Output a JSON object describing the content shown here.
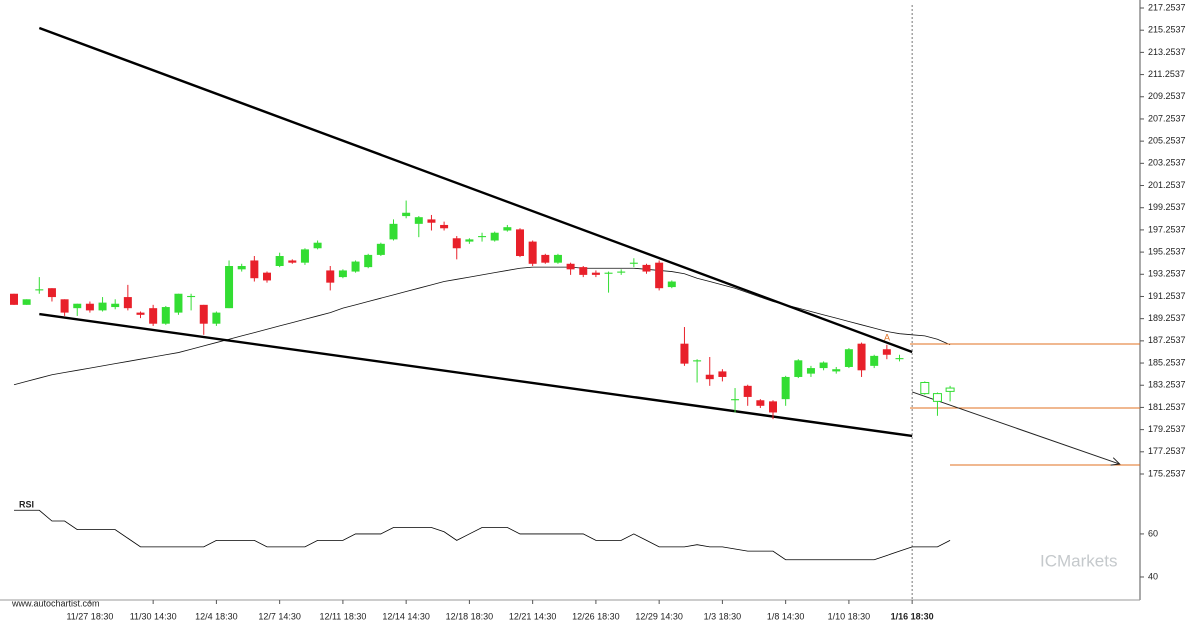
{
  "chart_data": {
    "type": "candlestick",
    "watermark": "www.autochartist.com",
    "brand": "ICMarkets",
    "up_color": "#33dd33",
    "down_color": "#e8202a",
    "level_color": "#e07020",
    "ylim": [
      175.2537,
      217.2537
    ],
    "yticks": [
      175.2537,
      177.2537,
      179.2537,
      181.2537,
      183.2537,
      185.2537,
      187.2537,
      189.2537,
      191.2537,
      193.2537,
      195.2537,
      197.2537,
      199.2537,
      201.2537,
      203.2537,
      205.2537,
      207.2537,
      209.2537,
      211.2537,
      213.2537,
      215.2537,
      217.2537
    ],
    "xticks": [
      {
        "value": 6,
        "label": "11/27 18:30"
      },
      {
        "value": 11,
        "label": "11/30 14:30"
      },
      {
        "value": 16,
        "label": "12/4 18:30"
      },
      {
        "value": 21,
        "label": "12/7 14:30"
      },
      {
        "value": 26,
        "label": "12/11 18:30"
      },
      {
        "value": 31,
        "label": "12/14 14:30"
      },
      {
        "value": 36,
        "label": "12/18 18:30"
      },
      {
        "value": 41,
        "label": "12/21 14:30"
      },
      {
        "value": 46,
        "label": "12/26 18:30"
      },
      {
        "value": 51,
        "label": "12/29 14:30"
      },
      {
        "value": 56,
        "label": "1/3 18:30"
      },
      {
        "value": 61,
        "label": "1/8 14:30"
      },
      {
        "value": 66,
        "label": "1/10 18:30"
      },
      {
        "value": 71,
        "label": "1/16 18:30"
      }
    ],
    "candles": [
      {
        "open": 191.5,
        "high": 191.5,
        "low": 190.5,
        "close": 190.5
      },
      {
        "open": 190.5,
        "high": 191.0,
        "low": 190.5,
        "close": 191.0
      },
      {
        "open": 191.8,
        "high": 193.0,
        "low": 191.5,
        "close": 191.9
      },
      {
        "open": 192.0,
        "high": 192.0,
        "low": 190.8,
        "close": 191.2
      },
      {
        "open": 191.0,
        "high": 191.0,
        "low": 189.5,
        "close": 189.8
      },
      {
        "open": 190.2,
        "high": 190.6,
        "low": 189.5,
        "close": 190.6
      },
      {
        "open": 190.6,
        "high": 190.8,
        "low": 189.8,
        "close": 190.0
      },
      {
        "open": 190.0,
        "high": 191.2,
        "low": 189.9,
        "close": 190.7
      },
      {
        "open": 190.3,
        "high": 191.0,
        "low": 190.1,
        "close": 190.6
      },
      {
        "open": 191.2,
        "high": 192.3,
        "low": 190.0,
        "close": 190.2
      },
      {
        "open": 189.8,
        "high": 189.9,
        "low": 189.3,
        "close": 189.6
      },
      {
        "open": 190.2,
        "high": 190.5,
        "low": 188.6,
        "close": 188.8
      },
      {
        "open": 188.8,
        "high": 190.4,
        "low": 188.7,
        "close": 190.3
      },
      {
        "open": 189.8,
        "high": 191.5,
        "low": 189.6,
        "close": 191.5
      },
      {
        "open": 191.2,
        "high": 191.5,
        "low": 190.0,
        "close": 191.3
      },
      {
        "open": 190.5,
        "high": 190.5,
        "low": 187.8,
        "close": 188.8
      },
      {
        "open": 188.8,
        "high": 189.9,
        "low": 188.6,
        "close": 189.8
      },
      {
        "open": 190.2,
        "high": 194.5,
        "low": 190.2,
        "close": 194.0
      },
      {
        "open": 193.7,
        "high": 194.2,
        "low": 193.5,
        "close": 194.0
      },
      {
        "open": 194.5,
        "high": 194.9,
        "low": 192.6,
        "close": 192.9
      },
      {
        "open": 193.4,
        "high": 193.5,
        "low": 192.5,
        "close": 192.7
      },
      {
        "open": 194.0,
        "high": 195.2,
        "low": 193.9,
        "close": 194.9
      },
      {
        "open": 194.5,
        "high": 194.6,
        "low": 194.2,
        "close": 194.3
      },
      {
        "open": 194.3,
        "high": 195.6,
        "low": 194.1,
        "close": 195.5
      },
      {
        "open": 195.6,
        "high": 196.3,
        "low": 195.5,
        "close": 196.1
      },
      {
        "open": 193.6,
        "high": 194.0,
        "low": 191.8,
        "close": 192.5
      },
      {
        "open": 193.0,
        "high": 193.7,
        "low": 192.9,
        "close": 193.6
      },
      {
        "open": 193.5,
        "high": 194.5,
        "low": 193.4,
        "close": 194.4
      },
      {
        "open": 193.9,
        "high": 195.1,
        "low": 193.8,
        "close": 195.0
      },
      {
        "open": 195.0,
        "high": 196.1,
        "low": 194.9,
        "close": 196.0
      },
      {
        "open": 196.4,
        "high": 198.2,
        "low": 196.3,
        "close": 197.8
      },
      {
        "open": 198.5,
        "high": 199.9,
        "low": 198.3,
        "close": 198.8
      },
      {
        "open": 197.8,
        "high": 198.5,
        "low": 196.6,
        "close": 198.4
      },
      {
        "open": 198.2,
        "high": 198.6,
        "low": 197.2,
        "close": 197.9
      },
      {
        "open": 197.7,
        "high": 198.0,
        "low": 197.2,
        "close": 197.4
      },
      {
        "open": 196.5,
        "high": 196.7,
        "low": 194.6,
        "close": 195.6
      },
      {
        "open": 196.2,
        "high": 196.5,
        "low": 196.0,
        "close": 196.4
      },
      {
        "open": 196.6,
        "high": 197.0,
        "low": 196.2,
        "close": 196.7
      },
      {
        "open": 196.3,
        "high": 197.1,
        "low": 196.2,
        "close": 197.0
      },
      {
        "open": 197.2,
        "high": 197.7,
        "low": 197.1,
        "close": 197.5
      },
      {
        "open": 197.3,
        "high": 197.4,
        "low": 194.8,
        "close": 194.9
      },
      {
        "open": 196.2,
        "high": 196.3,
        "low": 194.0,
        "close": 194.2
      },
      {
        "open": 195.0,
        "high": 195.1,
        "low": 194.2,
        "close": 194.3
      },
      {
        "open": 194.3,
        "high": 195.1,
        "low": 194.2,
        "close": 195.0
      },
      {
        "open": 194.2,
        "high": 194.3,
        "low": 193.2,
        "close": 193.7
      },
      {
        "open": 193.9,
        "high": 194.0,
        "low": 193.0,
        "close": 193.2
      },
      {
        "open": 193.4,
        "high": 193.6,
        "low": 193.0,
        "close": 193.2
      },
      {
        "open": 193.3,
        "high": 193.5,
        "low": 191.6,
        "close": 193.4
      },
      {
        "open": 193.4,
        "high": 193.7,
        "low": 193.2,
        "close": 193.5
      },
      {
        "open": 194.2,
        "high": 194.7,
        "low": 193.9,
        "close": 194.3
      },
      {
        "open": 194.1,
        "high": 194.2,
        "low": 193.3,
        "close": 193.5
      },
      {
        "open": 194.3,
        "high": 194.5,
        "low": 191.8,
        "close": 192.0
      },
      {
        "open": 192.1,
        "high": 192.7,
        "low": 192.0,
        "close": 192.6
      },
      {
        "open": 187.0,
        "high": 188.5,
        "low": 185.0,
        "close": 185.2
      },
      {
        "open": 185.4,
        "high": 185.6,
        "low": 183.5,
        "close": 185.5
      },
      {
        "open": 184.2,
        "high": 185.8,
        "low": 183.2,
        "close": 183.8
      },
      {
        "open": 184.5,
        "high": 184.7,
        "low": 183.6,
        "close": 184.0
      },
      {
        "open": 181.9,
        "high": 183.0,
        "low": 180.8,
        "close": 182.0
      },
      {
        "open": 183.2,
        "high": 183.3,
        "low": 181.4,
        "close": 182.2
      },
      {
        "open": 181.9,
        "high": 182.0,
        "low": 181.2,
        "close": 181.4
      },
      {
        "open": 181.8,
        "high": 181.9,
        "low": 180.2,
        "close": 180.8
      },
      {
        "open": 182.0,
        "high": 184.1,
        "low": 181.4,
        "close": 184.0
      },
      {
        "open": 184.0,
        "high": 185.6,
        "low": 183.9,
        "close": 185.5
      },
      {
        "open": 184.3,
        "high": 185.0,
        "low": 184.0,
        "close": 184.8
      },
      {
        "open": 184.8,
        "high": 185.4,
        "low": 184.6,
        "close": 185.3
      },
      {
        "open": 184.5,
        "high": 184.9,
        "low": 184.3,
        "close": 184.7
      },
      {
        "open": 184.9,
        "high": 186.6,
        "low": 184.8,
        "close": 186.5
      },
      {
        "open": 187.0,
        "high": 187.1,
        "low": 184.0,
        "close": 184.6
      },
      {
        "open": 185.0,
        "high": 186.0,
        "low": 184.8,
        "close": 185.9
      },
      {
        "open": 186.5,
        "high": 186.9,
        "low": 185.6,
        "close": 186.0
      },
      {
        "open": 185.6,
        "high": 186.0,
        "low": 185.4,
        "close": 185.7
      }
    ],
    "recent_candles": [
      {
        "open": 182.5,
        "high": 183.6,
        "low": 182.4,
        "close": 183.5
      },
      {
        "open": 181.8,
        "high": 182.6,
        "low": 180.5,
        "close": 182.5
      },
      {
        "open": 182.7,
        "high": 183.2,
        "low": 181.8,
        "close": 183.0
      }
    ],
    "ma": [
      183.3,
      183.6,
      183.9,
      184.2,
      184.4,
      184.6,
      184.8,
      185.0,
      185.2,
      185.4,
      185.6,
      185.8,
      186.0,
      186.2,
      186.5,
      186.8,
      187.1,
      187.4,
      187.7,
      188.0,
      188.3,
      188.6,
      188.9,
      189.2,
      189.5,
      189.8,
      190.2,
      190.5,
      190.8,
      191.1,
      191.4,
      191.7,
      192.0,
      192.3,
      192.6,
      192.8,
      193.0,
      193.2,
      193.4,
      193.6,
      193.8,
      193.9,
      193.9,
      193.9,
      193.9,
      193.8,
      193.8,
      193.8,
      193.8,
      193.8,
      193.7,
      193.6,
      193.5,
      193.3,
      192.9,
      192.6,
      192.3,
      192.0,
      191.6,
      191.2,
      190.8,
      190.5,
      190.2,
      189.9,
      189.6,
      189.3,
      189.0,
      188.7,
      188.4,
      188.1,
      187.9,
      187.8,
      187.7,
      187.4,
      186.9
    ],
    "trend_lines": [
      {
        "x": [
          2,
          71
        ],
        "y": [
          215.45,
          186.25
        ]
      },
      {
        "x": [
          2,
          71
        ],
        "y": [
          189.67,
          178.68
        ]
      }
    ],
    "forecast": {
      "x": [
        71,
        87.4
      ],
      "y": [
        182.65,
        176.15
      ]
    },
    "levels": [
      186.97,
      181.2,
      176.06
    ],
    "annotation": "A",
    "rsi": {
      "label": "RSI",
      "ylim": [
        29.3,
        76.7
      ],
      "yticks": [
        60,
        40
      ],
      "color": "#000000",
      "values": [
        71,
        71,
        71,
        66,
        66,
        62,
        62,
        62,
        62,
        58,
        54,
        54,
        54,
        54,
        54,
        54,
        57,
        57,
        57,
        57,
        54,
        54,
        54,
        54,
        57,
        57,
        57,
        60,
        60,
        60,
        63,
        63,
        63,
        63,
        61,
        57,
        60,
        63,
        63,
        63,
        60,
        60,
        60,
        60,
        60,
        60,
        57,
        57,
        57,
        60,
        57,
        54,
        54,
        54,
        55,
        54,
        54,
        53,
        52,
        52,
        52,
        48,
        48,
        48,
        48,
        48,
        48,
        48,
        48,
        50,
        52,
        54,
        54,
        54,
        57
      ]
    }
  }
}
